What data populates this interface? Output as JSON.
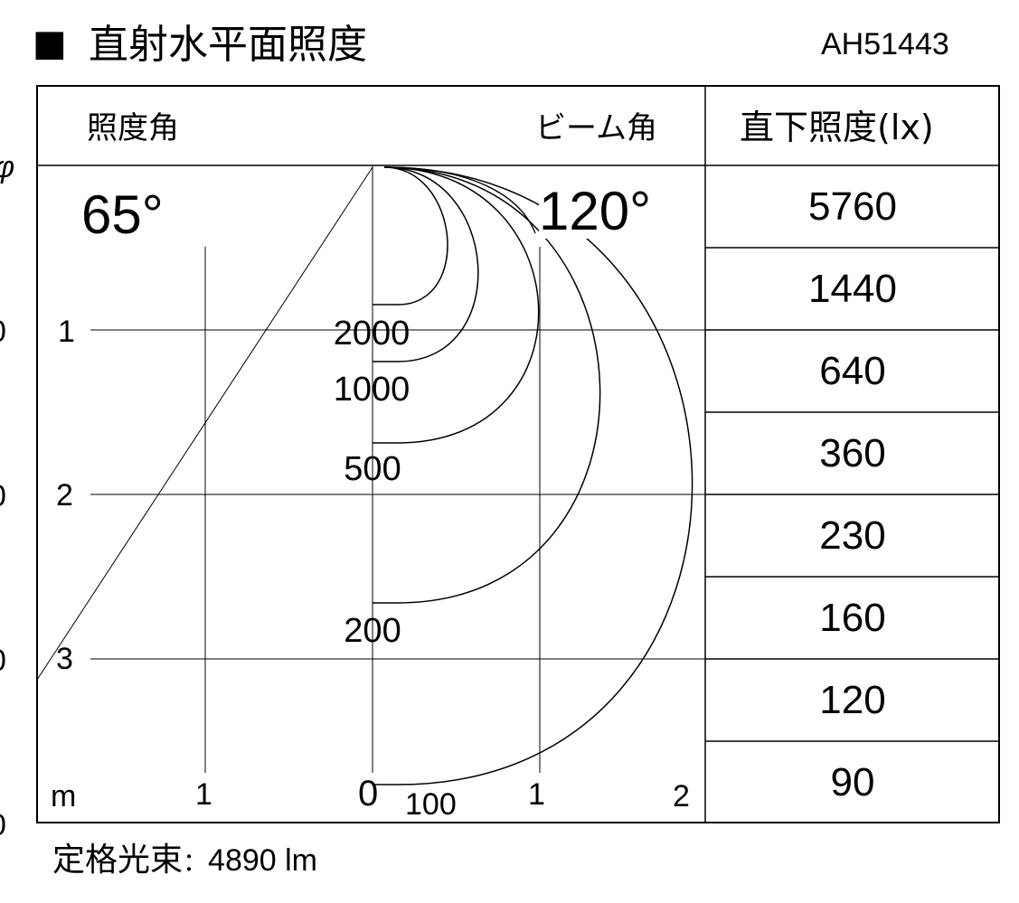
{
  "title": {
    "marker": "■",
    "text": "直射水平面照度"
  },
  "model": "AH51443",
  "header": {
    "illuminance_angle_label": "照度角",
    "beam_angle_label": "ビーム角",
    "direct_illuminance_label": "直下照度(lx)"
  },
  "angles": {
    "illuminance_angle": "65°",
    "beam_angle": "120°"
  },
  "direct_illuminance_values": [
    "5760",
    "1440",
    "640",
    "360",
    "230",
    "160",
    "120",
    "90"
  ],
  "axes": {
    "unit": "m",
    "x_ticks": [
      "1",
      "0",
      "1",
      "2"
    ],
    "y_ticks": [
      "1",
      "2",
      "3"
    ]
  },
  "isolux_levels": [
    "2000",
    "1000",
    "500",
    "200",
    "100"
  ],
  "left_edge_fragments": [
    "φ",
    "0",
    "0",
    "0",
    "0"
  ],
  "footer": {
    "label": "定格光束",
    "separator": "：",
    "value": "4890 lm"
  }
}
